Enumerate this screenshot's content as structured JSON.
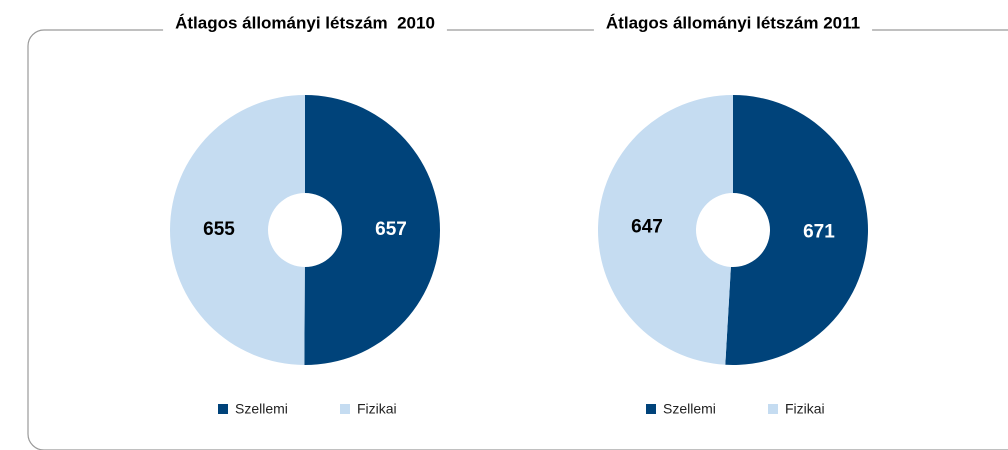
{
  "chart_data": [
    {
      "type": "pie",
      "donut": true,
      "title": "Átlagos állományi létszám  2010",
      "categories": [
        "Szellemi",
        "Fizikai"
      ],
      "values": [
        657,
        655
      ],
      "colors": [
        "#00437a",
        "#c5dcf1"
      ],
      "label_colors": [
        "#ffffff",
        "#000000"
      ],
      "legend": "bottom"
    },
    {
      "type": "pie",
      "donut": true,
      "title": "Átlagos állományi létszám 2011",
      "categories": [
        "Szellemi",
        "Fizikai"
      ],
      "values": [
        671,
        647
      ],
      "colors": [
        "#00437a",
        "#c5dcf1"
      ],
      "label_colors": [
        "#ffffff",
        "#000000"
      ],
      "legend": "bottom"
    }
  ]
}
